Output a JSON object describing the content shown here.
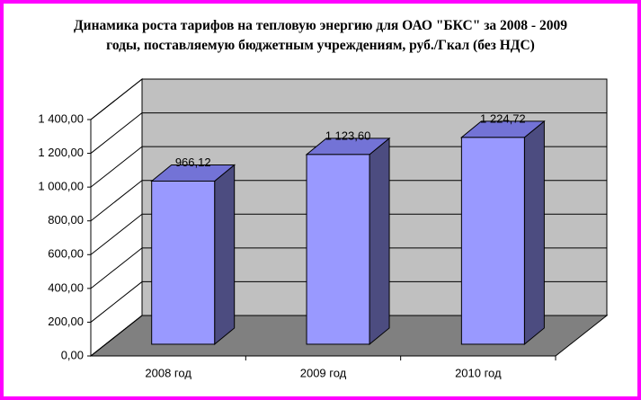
{
  "chart_data": {
    "type": "bar3d",
    "title": "Динамика роста тарифов на тепловую энергию для ОАО \"БКС\" за 2008 - 2009 годы, поставляемую бюджетным учреждениям, руб./Гкал (без НДС)",
    "categories": [
      "2008 год",
      "2009 год",
      "2010 год"
    ],
    "values": [
      966.12,
      1123.6,
      1224.72
    ],
    "value_labels": [
      "966,12",
      "1 123,60",
      "1 224,72"
    ],
    "color": "#9999ff",
    "ylim": [
      0,
      1400
    ],
    "yticks": [
      {
        "value": 0,
        "label": "0,00"
      },
      {
        "value": 200,
        "label": "200,00"
      },
      {
        "value": 400,
        "label": "400,00"
      },
      {
        "value": 600,
        "label": "600,00"
      },
      {
        "value": 800,
        "label": "800,00"
      },
      {
        "value": 1000,
        "label": "1 000,00"
      },
      {
        "value": 1200,
        "label": "1 200,00"
      },
      {
        "value": 1400,
        "label": "1 400,00"
      }
    ],
    "grid": true
  }
}
